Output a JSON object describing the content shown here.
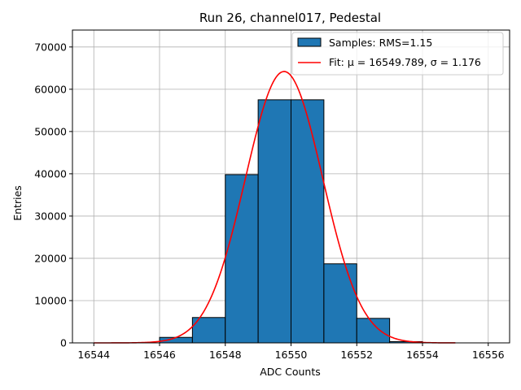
{
  "chart_data": {
    "type": "bar",
    "title": "Run 26, channel017, Pedestal",
    "xlabel": "ADC Counts",
    "ylabel": "Entries",
    "xlim": [
      16543.35,
      16556.65
    ],
    "ylim": [
      0,
      74000
    ],
    "xticks": [
      16544,
      16546,
      16548,
      16550,
      16552,
      16554,
      16556
    ],
    "yticks": [
      0,
      10000,
      20000,
      30000,
      40000,
      50000,
      60000,
      70000
    ],
    "grid": true,
    "legend_position": "top-right",
    "bins": {
      "edges": [
        16546,
        16547,
        16548,
        16549,
        16550,
        16551,
        16552,
        16553,
        16554
      ],
      "counts": [
        1300,
        6000,
        39800,
        57500,
        57500,
        18700,
        5800,
        300
      ]
    },
    "fit": {
      "mu": 16549.789,
      "sigma": 1.176,
      "amplitude": 64200,
      "x_range": [
        16544,
        16555
      ]
    },
    "legend": [
      {
        "label": "Samples: RMS=1.15",
        "kind": "patch",
        "color": "#1f77b4"
      },
      {
        "label": "Fit: μ = 16549.789, σ = 1.176",
        "kind": "line",
        "color": "#ff0000"
      }
    ],
    "colors": {
      "bar": "#1f77b4",
      "bar_edge": "#000000",
      "fit": "#ff0000",
      "grid": "#b0b0b0"
    }
  }
}
